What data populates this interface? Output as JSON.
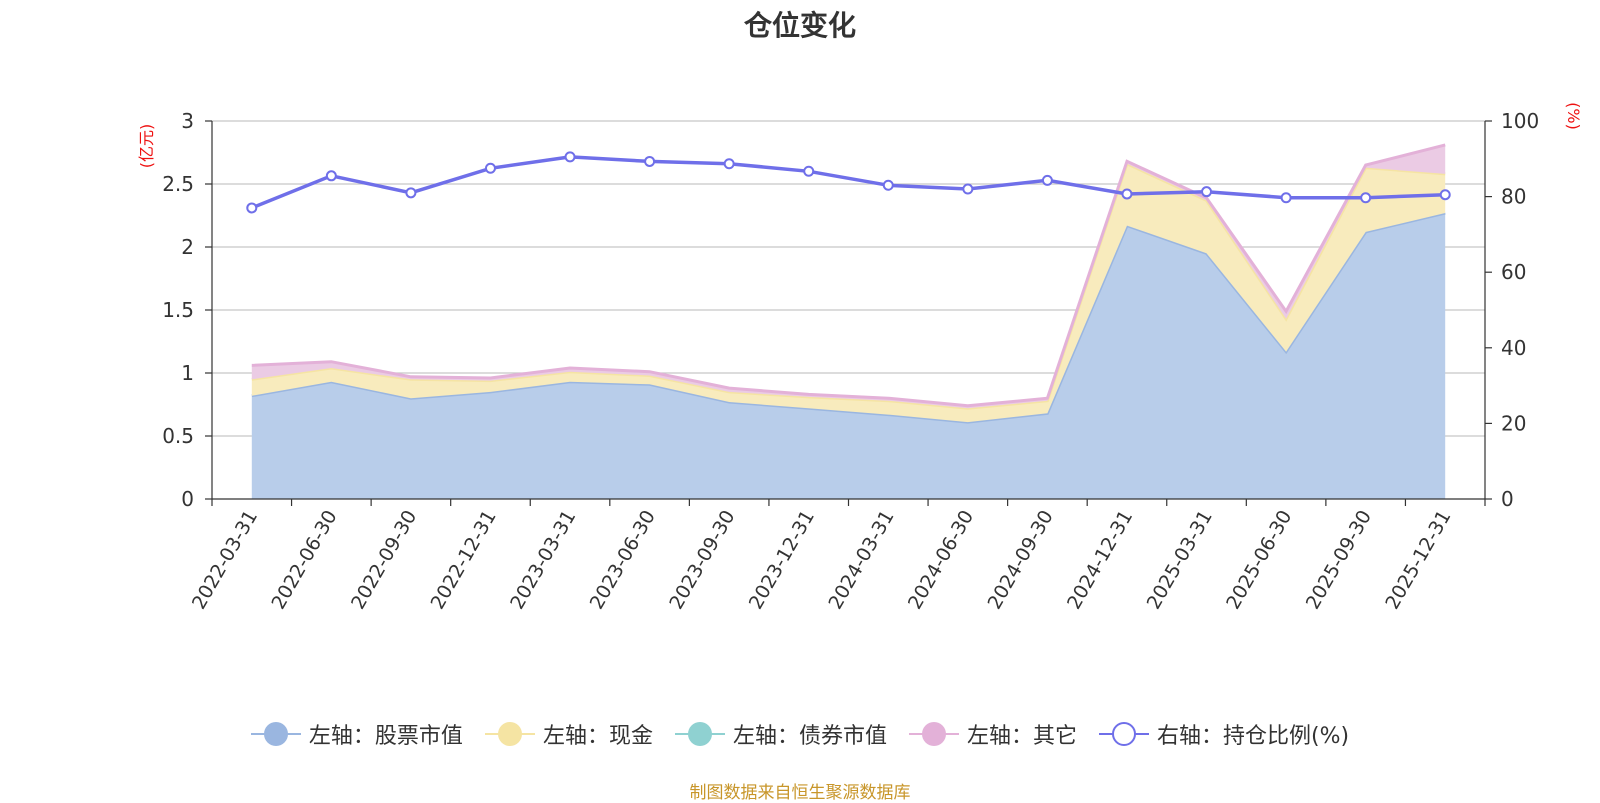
{
  "chart_data": {
    "type": "area",
    "title": "仓位变化",
    "left_axis_unit": "(亿元)",
    "right_axis_unit": "(%)",
    "categories": [
      "2022-03-31",
      "2022-06-30",
      "2022-09-30",
      "2022-12-31",
      "2023-03-31",
      "2023-06-30",
      "2023-09-30",
      "2023-12-31",
      "2024-03-31",
      "2024-06-30",
      "2024-09-30",
      "2024-12-31",
      "2025-03-31",
      "2025-06-30",
      "2025-09-30",
      "2025-12-31"
    ],
    "left_ylim": [
      0,
      3
    ],
    "left_yticks": [
      "0",
      "0.5",
      "1",
      "1.5",
      "2",
      "2.5",
      "3"
    ],
    "right_ylim": [
      0,
      100
    ],
    "right_yticks": [
      "0",
      "20",
      "40",
      "60",
      "80",
      "100"
    ],
    "grid": true,
    "legend_position": "bottom",
    "series": [
      {
        "name": "左轴：股票市值",
        "axis": "left",
        "stacked": true,
        "color": "#9ab6e0",
        "fill": "#b8cdea",
        "values": [
          0.82,
          0.93,
          0.8,
          0.85,
          0.93,
          0.91,
          0.77,
          0.72,
          0.67,
          0.61,
          0.68,
          2.17,
          1.95,
          1.17,
          2.12,
          2.27
        ]
      },
      {
        "name": "左轴：现金",
        "axis": "left",
        "stacked": true,
        "color": "#f5e4a3",
        "fill": "#f8ebbd",
        "values": [
          0.13,
          0.11,
          0.15,
          0.09,
          0.08,
          0.07,
          0.08,
          0.09,
          0.11,
          0.11,
          0.1,
          0.49,
          0.42,
          0.26,
          0.51,
          0.31
        ]
      },
      {
        "name": "左轴：债券市值",
        "axis": "left",
        "stacked": true,
        "color": "#8fd1d1",
        "fill": "#a9dcdc",
        "values": [
          0,
          0,
          0,
          0,
          0,
          0,
          0,
          0,
          0,
          0,
          0,
          0,
          0,
          0,
          0,
          0
        ]
      },
      {
        "name": "左轴：其它",
        "axis": "left",
        "stacked": true,
        "color": "#e3b1d8",
        "fill": "#ebcbe4",
        "values": [
          0.11,
          0.05,
          0.02,
          0.02,
          0.03,
          0.03,
          0.03,
          0.02,
          0.02,
          0.02,
          0.02,
          0.02,
          0.02,
          0.06,
          0.02,
          0.23
        ]
      },
      {
        "name": "右轴：持仓比例(%)",
        "axis": "right",
        "type": "line",
        "color": "#6f6fe9",
        "values": [
          77,
          85.5,
          81,
          87.5,
          90.5,
          89.3,
          88.7,
          86.7,
          83,
          82,
          84.3,
          80.7,
          81.3,
          79.7,
          79.7,
          80.5
        ]
      }
    ]
  },
  "source_note": "制图数据来自恒生聚源数据库"
}
